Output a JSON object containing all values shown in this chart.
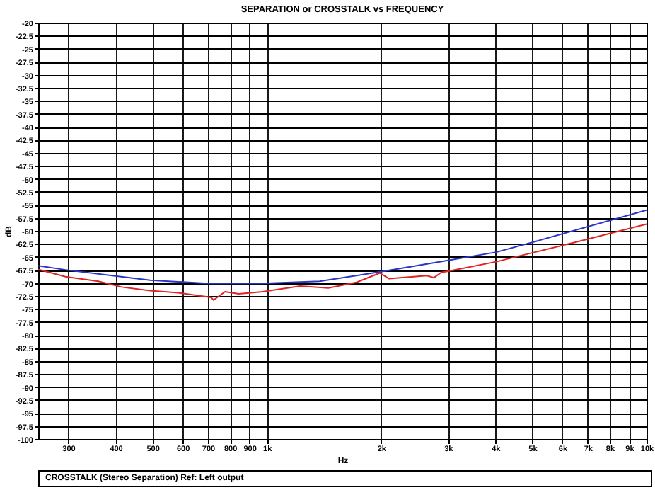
{
  "chart_data": {
    "type": "line",
    "title": "SEPARATION or CROSSTALK vs FREQUENCY",
    "xlabel": "Hz",
    "ylabel": "dB",
    "annotations": [
      "CROSSTALK (Stereo Separation) Ref: Left output"
    ],
    "log": "x",
    "grid": true,
    "xlim": [
      250,
      10000
    ],
    "xticks": [
      300,
      400,
      500,
      600,
      700,
      800,
      900,
      {
        "value": 1000,
        "label": "1k"
      },
      {
        "value": 2000,
        "label": "2k"
      },
      {
        "value": 3000,
        "label": "3k"
      },
      {
        "value": 4000,
        "label": "4k"
      },
      {
        "value": 5000,
        "label": "5k"
      },
      {
        "value": 6000,
        "label": "6k"
      },
      {
        "value": 7000,
        "label": "7k"
      },
      {
        "value": 8000,
        "label": "8k"
      },
      {
        "value": 9000,
        "label": "9k"
      },
      {
        "value": 10000,
        "label": "10k"
      }
    ],
    "ylim": [
      -100,
      -20
    ],
    "yticks": [
      -20,
      -22.5,
      -25,
      -27.5,
      -30,
      -32.5,
      -35,
      -37.5,
      -40,
      -42.5,
      -45,
      -47.5,
      -50,
      -52.5,
      -55,
      -57.5,
      -60,
      -62.5,
      -65,
      -67.5,
      -70,
      -72.5,
      -75,
      -77.5,
      -80,
      -82.5,
      -85,
      -87.5,
      -90,
      -92.5,
      -95,
      -97.5,
      -100
    ],
    "series": [
      {
        "color": "#2a35c8",
        "x": [
          250,
          295,
          392,
          493,
          696,
          975,
          1377,
          1985,
          3040,
          4020,
          5180,
          10000
        ],
        "values": [
          -66.7,
          -67.5,
          -68.6,
          -69.5,
          -70.1,
          -70.1,
          -69.7,
          -67.9,
          -65.6,
          -64.1,
          -61.9,
          -56.0
        ]
      },
      {
        "color": "#e02424",
        "x": [
          250,
          295,
          360,
          415,
          493,
          585,
          714,
          724,
          776,
          844,
          975,
          1225,
          1452,
          1722,
          1985,
          2100,
          2640,
          2755,
          2880,
          3040,
          4040,
          5080,
          6730,
          10000
        ],
        "values": [
          -67.4,
          -68.8,
          -69.7,
          -70.8,
          -71.5,
          -71.9,
          -72.8,
          -73.3,
          -71.7,
          -72.1,
          -71.7,
          -70.6,
          -71.0,
          -69.9,
          -68.1,
          -69.2,
          -68.6,
          -69.0,
          -68.0,
          -67.7,
          -65.9,
          -64.1,
          -61.9,
          -58.7
        ]
      }
    ]
  }
}
